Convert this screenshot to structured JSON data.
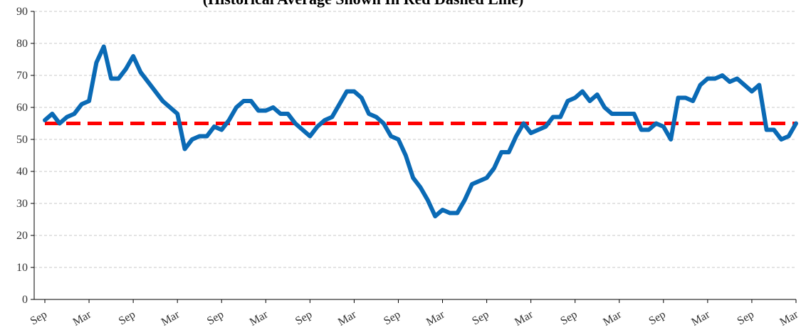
{
  "chart_data": {
    "type": "line",
    "title": "(Historical Average Shown In Red Dashed Line)",
    "categories": [
      "Sep",
      null,
      null,
      null,
      null,
      null,
      "Mar",
      null,
      null,
      null,
      null,
      null,
      "Sep",
      null,
      null,
      null,
      null,
      null,
      "Mar",
      null,
      null,
      null,
      null,
      null,
      "Sep",
      null,
      null,
      null,
      null,
      null,
      "Mar",
      null,
      null,
      null,
      null,
      null,
      "Sep",
      null,
      null,
      null,
      null,
      null,
      "Mar",
      null,
      null,
      null,
      null,
      null,
      "Sep",
      null,
      null,
      null,
      null,
      null,
      "Mar",
      null,
      null,
      null,
      null,
      null,
      "Sep",
      null,
      null,
      null,
      null,
      null,
      "Mar",
      null,
      null,
      null,
      null,
      null,
      "Sep",
      null,
      null,
      null,
      null,
      null,
      "Mar",
      null,
      null,
      null,
      null,
      null,
      "Sep",
      null,
      null,
      null,
      null,
      null,
      "Mar",
      null,
      null,
      null,
      null,
      null,
      "Sep",
      null,
      null,
      null,
      null,
      null,
      "Mar"
    ],
    "series": [
      {
        "color": "#0a6ab5",
        "values": [
          56,
          58,
          55,
          57,
          58,
          61,
          62,
          74,
          79,
          69,
          69,
          72,
          76,
          71,
          68,
          65,
          62,
          60,
          58,
          47,
          50,
          51,
          51,
          54,
          53,
          56,
          60,
          62,
          62,
          59,
          59,
          60,
          58,
          58,
          55,
          53,
          51,
          54,
          56,
          57,
          61,
          65,
          65,
          63,
          58,
          57,
          55,
          51,
          50,
          45,
          38,
          35,
          31,
          26,
          28,
          27,
          27,
          31,
          36,
          37,
          38,
          41,
          46,
          46,
          51,
          55,
          52,
          53,
          54,
          57,
          57,
          62,
          63,
          65,
          62,
          64,
          60,
          58,
          58,
          58,
          58,
          53,
          53,
          55,
          54,
          50,
          63,
          63,
          62,
          67,
          69,
          69,
          70,
          68,
          69,
          67,
          65,
          67,
          53,
          53,
          50,
          51,
          55
        ]
      }
    ],
    "reference_line": {
      "value": 55,
      "color": "#ff0000",
      "style": "dashed"
    },
    "ylim": [
      0,
      90
    ],
    "yticks": [
      0,
      10,
      20,
      30,
      40,
      50,
      60,
      70,
      80,
      90
    ],
    "grid": true
  }
}
